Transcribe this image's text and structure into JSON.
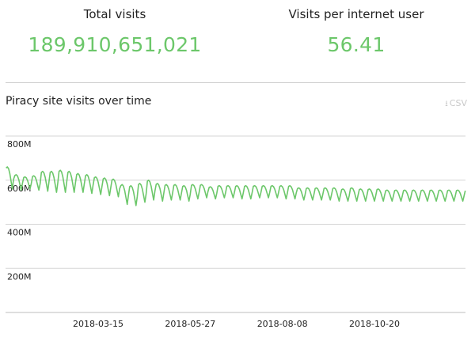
{
  "stats": {
    "total_visits_label": "Total visits",
    "total_visits_value": "189,910,651,021",
    "per_user_label": "Visits per internet user",
    "per_user_value": "56.41"
  },
  "chart": {
    "title": "Piracy site visits over time",
    "csv_label": "CSV",
    "download_icon": "download-icon"
  },
  "colors": {
    "accent": "#6cc76a",
    "grid": "#d6d6d6",
    "muted": "#c9c9c9"
  },
  "chart_data": {
    "type": "line",
    "title": "Piracy site visits over time",
    "xlabel": "",
    "ylabel": "",
    "ylim": [
      0,
      800000000
    ],
    "yticks": [
      {
        "value": 200000000,
        "label": "200M"
      },
      {
        "value": 400000000,
        "label": "400M"
      },
      {
        "value": 600000000,
        "label": "600M"
      },
      {
        "value": 800000000,
        "label": "800M"
      }
    ],
    "xlim": [
      "2018-01-01",
      "2018-12-31"
    ],
    "xticks": [
      {
        "value": "2018-03-15",
        "label": "2018-03-15"
      },
      {
        "value": "2018-05-27",
        "label": "2018-05-27"
      },
      {
        "value": "2018-08-08",
        "label": "2018-08-08"
      },
      {
        "value": "2018-10-20",
        "label": "2018-10-20"
      }
    ],
    "grid": true,
    "legend": "none",
    "series": [
      {
        "start": "2018-01-01",
        "step_days": 1,
        "weekly_pattern": true,
        "weekly_peaks": [
          660,
          625,
          615,
          620,
          640,
          640,
          645,
          640,
          630,
          625,
          615,
          610,
          605,
          580,
          575,
          585,
          600,
          585,
          580,
          580,
          575,
          580,
          580,
          570,
          575,
          575,
          575,
          575,
          575,
          575,
          575,
          575,
          575,
          565,
          565,
          565,
          565,
          565,
          560,
          565,
          560,
          560,
          560,
          555,
          555,
          555,
          555,
          555,
          555,
          555,
          555,
          555
        ],
        "weekly_troughs": [
          560,
          555,
          560,
          555,
          550,
          545,
          545,
          545,
          545,
          540,
          535,
          530,
          525,
          490,
          485,
          500,
          510,
          505,
          510,
          510,
          505,
          515,
          520,
          515,
          520,
          520,
          515,
          515,
          520,
          520,
          520,
          515,
          515,
          510,
          510,
          510,
          510,
          505,
          505,
          505,
          505,
          505,
          505,
          505,
          505,
          505,
          505,
          505,
          505,
          505,
          505,
          505
        ],
        "units": "millions"
      }
    ]
  }
}
